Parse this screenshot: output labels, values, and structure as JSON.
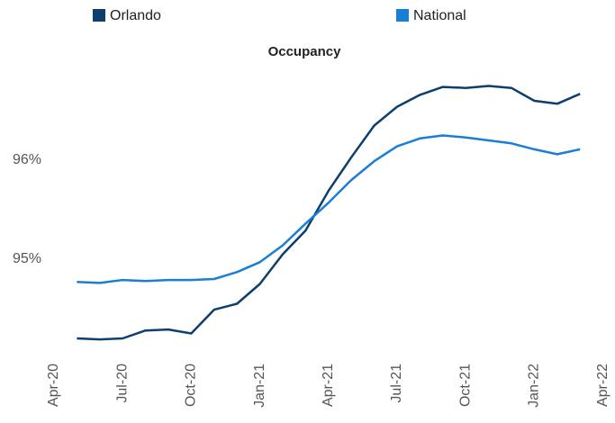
{
  "chart_data": {
    "type": "line",
    "title": "Occupancy",
    "categories": [
      "Apr-20",
      null,
      null,
      "Jul-20",
      null,
      null,
      "Oct-20",
      null,
      null,
      "Jan-21",
      null,
      null,
      "Apr-21",
      null,
      null,
      "Jul-21",
      null,
      null,
      "Oct-21",
      null,
      null,
      "Jan-22",
      null,
      null,
      "Apr-22"
    ],
    "series": [
      {
        "name": "Orlando",
        "color": "#0d3f6e",
        "values": [
          null,
          94.2,
          94.19,
          94.2,
          94.28,
          94.29,
          94.25,
          94.49,
          94.55,
          94.75,
          95.05,
          95.29,
          95.69,
          96.03,
          96.35,
          96.54,
          96.66,
          96.74,
          96.73,
          96.75,
          96.73,
          96.6,
          96.57,
          96.67,
          null
        ]
      },
      {
        "name": "National",
        "color": "#1a7fd4",
        "values": [
          null,
          94.77,
          94.76,
          94.79,
          94.78,
          94.79,
          94.79,
          94.8,
          94.87,
          94.97,
          95.14,
          95.36,
          95.57,
          95.8,
          95.99,
          96.14,
          96.22,
          96.25,
          96.23,
          96.2,
          96.17,
          96.11,
          96.06,
          96.11,
          null
        ]
      }
    ],
    "ylim": [
      94,
      96.8
    ],
    "yticks": [
      {
        "value": 95,
        "label": "95%"
      },
      {
        "value": 96,
        "label": "96%"
      }
    ],
    "grid": false
  }
}
